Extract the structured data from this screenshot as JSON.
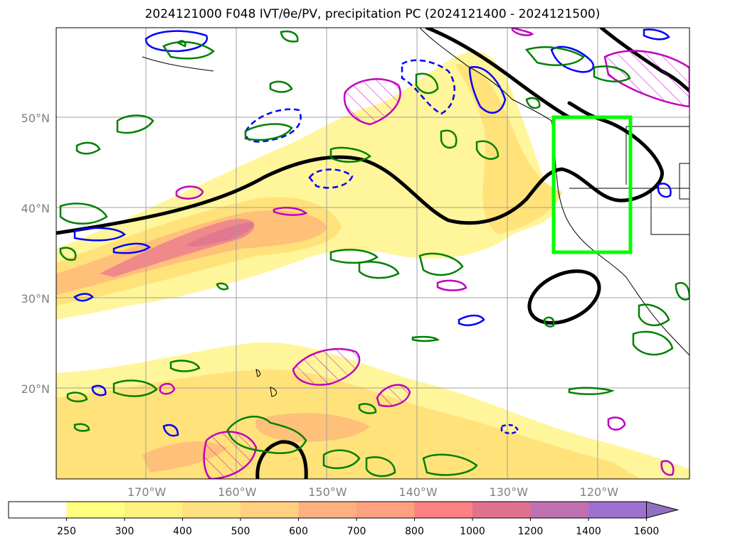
{
  "title": "2024121000 F048 IVT/θe/PV, precipitation PC (2024121400 - 2024121500)",
  "map": {
    "lat_labels": [
      {
        "lat": 50,
        "label": "50°N"
      },
      {
        "lat": 40,
        "label": "40°N"
      },
      {
        "lat": 30,
        "label": "30°N"
      },
      {
        "lat": 20,
        "label": "20°N"
      }
    ],
    "lon_labels": [
      {
        "lon": -170,
        "label": "170°W"
      },
      {
        "lon": -160,
        "label": "160°W"
      },
      {
        "lon": -150,
        "label": "150°W"
      },
      {
        "lon": -140,
        "label": "140°W"
      },
      {
        "lon": -130,
        "label": "130°W"
      },
      {
        "lon": -120,
        "label": "120°W"
      }
    ],
    "highlight_box": {
      "lon_min": -125,
      "lon_max": -116.5,
      "lat_min": 35,
      "lat_max": 50,
      "color": "#00ff00"
    },
    "contour_colors": {
      "theta_e_line": "#000000",
      "pv_positive": "#0000ff",
      "precip_pc": "#008000",
      "hatched": "#c000c0"
    }
  },
  "colorbar": {
    "ticks": [
      "250",
      "300",
      "400",
      "500",
      "600",
      "700",
      "800",
      "1000",
      "1200",
      "1400",
      "1600"
    ],
    "colors": [
      "#ffffff",
      "#ffff80",
      "#fff080",
      "#ffe080",
      "#ffd080",
      "#ffb080",
      "#ffa080",
      "#ff8080",
      "#e07090",
      "#c070b0",
      "#a070d0",
      "#9070c0"
    ],
    "extend": "max"
  }
}
